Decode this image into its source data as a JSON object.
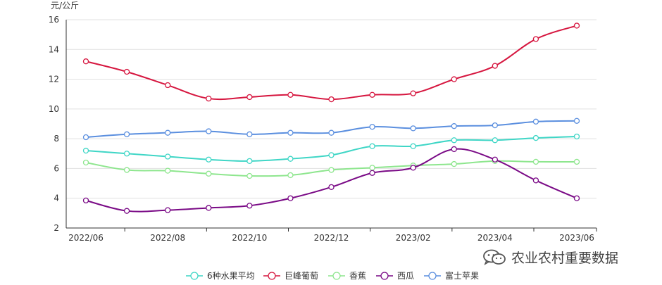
{
  "chart_data": {
    "type": "line",
    "unit_label": "元/公斤",
    "categories": [
      "2022/06",
      "2022/07",
      "2022/08",
      "2022/09",
      "2022/10",
      "2022/11",
      "2022/12",
      "2023/01",
      "2023/02",
      "2023/03",
      "2023/04",
      "2023/05",
      "2023/06"
    ],
    "x_tick_labels": [
      "2022/06",
      "2022/08",
      "2022/10",
      "2022/12",
      "2023/02",
      "2023/04",
      "2023/06"
    ],
    "ylim": [
      2,
      16
    ],
    "y_ticks": [
      2,
      4,
      6,
      8,
      10,
      12,
      14,
      16
    ],
    "grid": true,
    "legend_position": "bottom",
    "series": [
      {
        "name": "6种水果平均",
        "color": "#3fd6c6",
        "values": [
          7.2,
          7.0,
          6.8,
          6.6,
          6.5,
          6.65,
          6.9,
          7.5,
          7.5,
          7.9,
          7.9,
          8.05,
          8.15
        ]
      },
      {
        "name": "巨峰葡萄",
        "color": "#d6163f",
        "values": [
          13.2,
          12.5,
          11.6,
          10.7,
          10.8,
          10.95,
          10.65,
          10.95,
          11.05,
          12.0,
          12.9,
          14.7,
          15.6
        ]
      },
      {
        "name": "香蕉",
        "color": "#8ee68e",
        "values": [
          6.4,
          5.9,
          5.85,
          5.65,
          5.5,
          5.55,
          5.9,
          6.05,
          6.2,
          6.3,
          6.5,
          6.45,
          6.45
        ]
      },
      {
        "name": "西瓜",
        "color": "#7a0a86",
        "values": [
          3.85,
          3.15,
          3.2,
          3.35,
          3.5,
          4.0,
          4.75,
          5.7,
          6.05,
          7.3,
          6.6,
          5.2,
          4.0
        ]
      },
      {
        "name": "富士苹果",
        "color": "#5b8fdf",
        "values": [
          8.1,
          8.3,
          8.4,
          8.5,
          8.3,
          8.4,
          8.4,
          8.8,
          8.7,
          8.85,
          8.9,
          9.15,
          9.2
        ]
      }
    ]
  },
  "watermark": {
    "text": "农业农村重要数据",
    "icon": "wechat-icon"
  }
}
